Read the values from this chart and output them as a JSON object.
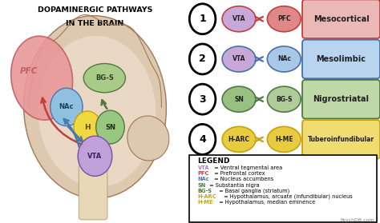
{
  "title_line1": "DOPAMINERGIC PATHWAYS",
  "title_line2": "IN THE BRAIN",
  "pathways": [
    {
      "number": "1",
      "node1": "VTA",
      "node2": "PFC",
      "label": "Mesocortical",
      "node1_color": "#c8a8d8",
      "node2_color": "#e08888",
      "arrow_color": "#c04040",
      "box_color": "#ebb8b8",
      "box_edge": "#c04040",
      "label_fontsize": 7
    },
    {
      "number": "2",
      "node1": "VTA",
      "node2": "NAc",
      "label": "Mesolimbic",
      "node1_color": "#c8a8d8",
      "node2_color": "#a8c8e8",
      "arrow_color": "#4870a8",
      "box_color": "#b8d4ee",
      "box_edge": "#4870a8",
      "label_fontsize": 7
    },
    {
      "number": "3",
      "node1": "SN",
      "node2": "BG-S",
      "label": "Nigrostriatal",
      "node1_color": "#98c080",
      "node2_color": "#b0cc98",
      "arrow_color": "#507840",
      "box_color": "#c0d8a8",
      "box_edge": "#507840",
      "label_fontsize": 7
    },
    {
      "number": "4",
      "node1": "H-ARC",
      "node2": "H-ME",
      "label": "Tuberoinfundibular",
      "node1_color": "#e8cc40",
      "node2_color": "#e8cc40",
      "arrow_color": "#c8a010",
      "box_color": "#f0dc70",
      "box_edge": "#c8a010",
      "label_fontsize": 5.5
    }
  ],
  "legend": {
    "title": "LEGEND",
    "items": [
      {
        "abbr": "VTA",
        "color": "#a878c8",
        "text": " = Ventral tegmental area"
      },
      {
        "abbr": "PFC",
        "color": "#c04040",
        "text": " = Prefrontal cortex"
      },
      {
        "abbr": "NAc",
        "color": "#4878b0",
        "text": " = Nucleus accumbens"
      },
      {
        "abbr": "SN",
        "color": "#507840",
        "text": " = Substantia nigra"
      },
      {
        "abbr": "BG-S",
        "color": "#507840",
        "text": " = Basal ganglia (striatum)"
      },
      {
        "abbr": "H-ARC",
        "color": "#c8a010",
        "text": " = Hypothalamus, arcuate (infundibular) nucleus"
      },
      {
        "abbr": "H-ME",
        "color": "#c8a010",
        "text": " = Hypothalamus, median eminence"
      }
    ]
  },
  "watermark": "PsychDB.com",
  "brain": {
    "outer_color": "#ddc8b0",
    "outer_edge": "#a07858",
    "inner_color": "#e8d8c4",
    "cortex_color": "#e89898",
    "cortex_edge": "#c06060",
    "nac_color": "#90c0e0",
    "nac_edge": "#4878b0",
    "bgs_color": "#a8cc88",
    "bgs_edge": "#507840",
    "h_color": "#f0d840",
    "h_edge": "#c8a010",
    "sn_color": "#98c880",
    "sn_edge": "#507840",
    "vta_color": "#c0a0d8",
    "vta_edge": "#7850a8",
    "arrow_red": "#c04040",
    "arrow_blue": "#4878b0",
    "arrow_green": "#507840"
  }
}
